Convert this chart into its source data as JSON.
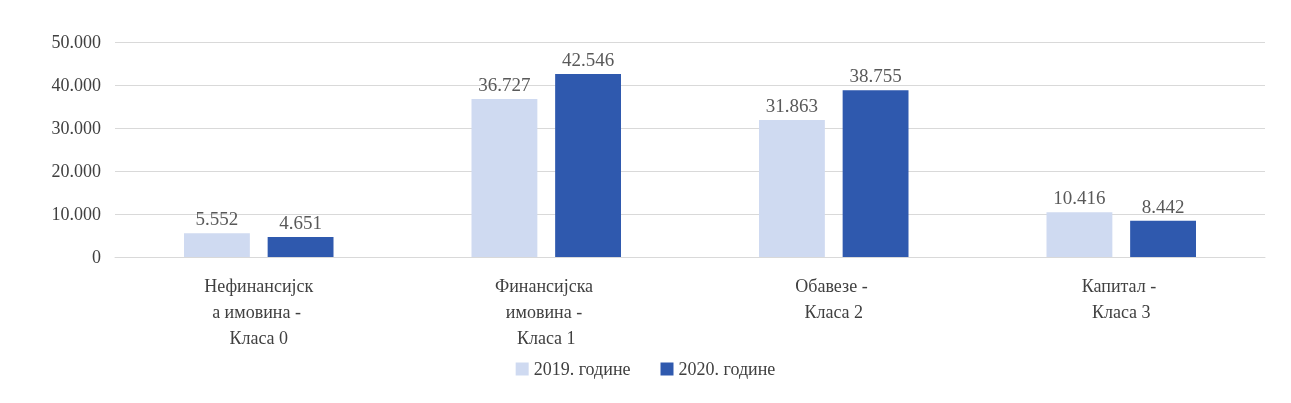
{
  "chart_data": {
    "type": "bar",
    "categories": [
      "Нефинансијска имовина - Класа 0",
      "Финансијска имовина - Класа 1",
      "Обавезе - Класа 2",
      "Капитал - Класа 3"
    ],
    "series": [
      {
        "name": "2019. године",
        "color": "#cfdaf1",
        "values": [
          5552,
          36727,
          31863,
          10416
        ],
        "value_labels": [
          "5.552",
          "36.727",
          "31.863",
          "10.416"
        ]
      },
      {
        "name": "2020. године",
        "color": "#2f59ae",
        "values": [
          4651,
          42546,
          38755,
          8442
        ],
        "value_labels": [
          "4.651",
          "42.546",
          "38.755",
          "8.442"
        ]
      }
    ],
    "ylim": [
      0,
      50000
    ],
    "yticks": [
      {
        "value": 0,
        "label": "0"
      },
      {
        "value": 10000,
        "label": "10.000"
      },
      {
        "value": 20000,
        "label": "20.000"
      },
      {
        "value": 30000,
        "label": "30.000"
      },
      {
        "value": 40000,
        "label": "40.000"
      },
      {
        "value": 50000,
        "label": "50.000"
      }
    ],
    "grid": "y",
    "legend": "bottom"
  }
}
